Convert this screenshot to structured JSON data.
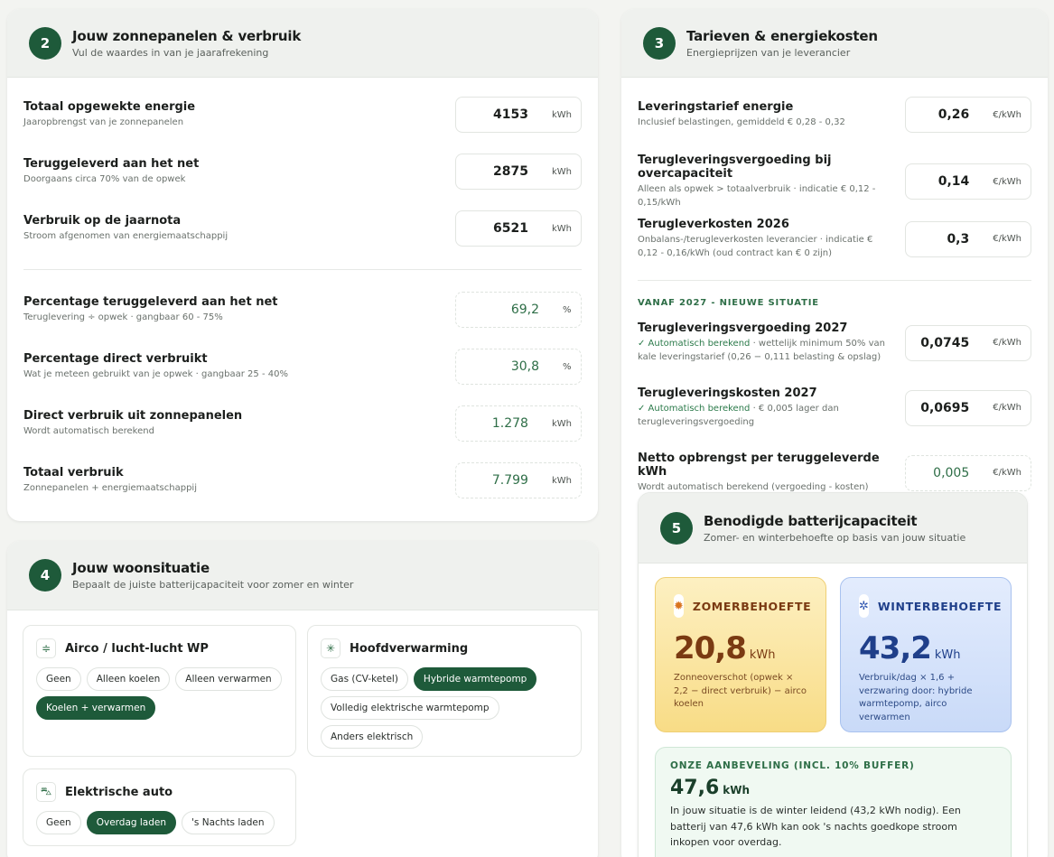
{
  "card2": {
    "number": "2",
    "title": "Jouw zonnepanelen & verbruik",
    "subtitle": "Vul de waardes in van je jaarafrekening",
    "inputs": [
      {
        "label": "Totaal opgewekte energie",
        "hint": "Jaaropbrengst van je zonnepanelen",
        "value": "4153",
        "unit": "kWh"
      },
      {
        "label": "Teruggeleverd aan het net",
        "hint": "Doorgaans circa 70% van de opwek",
        "value": "2875",
        "unit": "kWh"
      },
      {
        "label": "Verbruik op de jaarnota",
        "hint": "Stroom afgenomen van energiemaatschappij",
        "value": "6521",
        "unit": "kWh"
      }
    ],
    "calculated": [
      {
        "label": "Percentage teruggeleverd aan het net",
        "hint": "Teruglevering ÷ opwek · gangbaar 60 - 75%",
        "value": "69,2",
        "unit": "%"
      },
      {
        "label": "Percentage direct verbruikt",
        "hint": "Wat je meteen gebruikt van je opwek · gangbaar 25 - 40%",
        "value": "30,8",
        "unit": "%"
      },
      {
        "label": "Direct verbruik uit zonnepanelen",
        "hint": "Wordt automatisch berekend",
        "value": "1.278",
        "unit": "kWh"
      },
      {
        "label": "Totaal verbruik",
        "hint": "Zonnepanelen + energiemaatschappij",
        "value": "7.799",
        "unit": "kWh"
      }
    ]
  },
  "card3": {
    "number": "3",
    "title": "Tarieven & energiekosten",
    "subtitle": "Energieprijzen van je leverancier",
    "inputs": [
      {
        "label": "Leveringstarief energie",
        "hint": "Inclusief belastingen, gemiddeld € 0,28 - 0,32",
        "value": "0,26",
        "unit": "€/kWh"
      },
      {
        "label": "Terugleveringsvergoeding bij overcapaciteit",
        "hint": "Alleen als opwek > totaalverbruik · indicatie € 0,12 - 0,15/kWh",
        "value": "0,14",
        "unit": "€/kWh"
      },
      {
        "label": "Terugleverkosten 2026",
        "hint": "Onbalans-/terugleverkosten leverancier · indicatie € 0,12 - 0,16/kWh (oud contract kan € 0 zijn)",
        "value": "0,3",
        "unit": "€/kWh"
      }
    ],
    "section_label": "VANAF 2027 - NIEUWE SITUATIE",
    "future": [
      {
        "label": "Terugleveringsvergoeding 2027",
        "auto": "✓ Automatisch berekend",
        "hint": " · wettelijk minimum 50% van kale leveringstarief (0,26 − 0,111 belasting & opslag)",
        "value": "0,0745",
        "unit": "€/kWh"
      },
      {
        "label": "Terugleveringskosten 2027",
        "auto": "✓ Automatisch berekend",
        "hint": " · € 0,005 lager dan terugleveringsvergoeding",
        "value": "0,0695",
        "unit": "€/kWh"
      }
    ],
    "net": {
      "label": "Netto opbrengst per teruggeleverde kWh",
      "hint": "Wordt automatisch berekend (vergoeding - kosten)",
      "value": "0,005",
      "unit": "€/kWh"
    }
  },
  "card4": {
    "number": "4",
    "title": "Jouw woonsituatie",
    "subtitle": "Bepaalt de juiste batterijcapaciteit voor zomer en winter",
    "airco": {
      "title": "Airco / lucht-lucht WP",
      "options": [
        "Geen",
        "Alleen koelen",
        "Alleen verwarmen",
        "Koelen + verwarmen"
      ],
      "selected": "Koelen + verwarmen"
    },
    "heating": {
      "title": "Hoofdverwarming",
      "options": [
        "Gas (CV-ketel)",
        "Hybride warmtepomp",
        "Volledig elektrische warmtepomp",
        "Anders elektrisch"
      ],
      "selected": "Hybride warmtepomp"
    },
    "ev": {
      "title": "Elektrische auto",
      "options": [
        "Geen",
        "Overdag laden",
        "'s Nachts laden"
      ],
      "selected": "Overdag laden"
    }
  },
  "card5": {
    "number": "5",
    "title": "Benodigde batterijcapaciteit",
    "subtitle": "Zomer- en winterbehoefte op basis van jouw situatie",
    "summer": {
      "title": "ZOMERBEHOEFTE",
      "value": "20,8",
      "unit": "kWh",
      "desc": "Zonneoverschot (opwek × 2,2 − direct verbruik) − airco koelen"
    },
    "winter": {
      "title": "WINTERBEHOEFTE",
      "value": "43,2",
      "unit": "kWh",
      "desc": "Verbruik/dag × 1,6 + verzwaring door: hybride warmtepomp, airco verwarmen"
    },
    "advice": {
      "title": "ONZE AANBEVELING (INCL. 10% BUFFER)",
      "value": "47,6",
      "unit": "kWh",
      "text": "In jouw situatie is de winter leidend (43,2 kWh nodig). Een batterij van 47,6 kWh kan ook 's nachts goedkope stroom inkopen voor overdag."
    }
  },
  "colors": {
    "accent": "#1e5a3a",
    "summer_text": "#7a3a12",
    "winter_text": "#1f3f8a"
  },
  "icons": {
    "airco": "snowflake-icon",
    "heating": "sun-heat-icon",
    "ev": "car-icon",
    "summer": "sun-icon",
    "winter": "snowflake-icon"
  }
}
